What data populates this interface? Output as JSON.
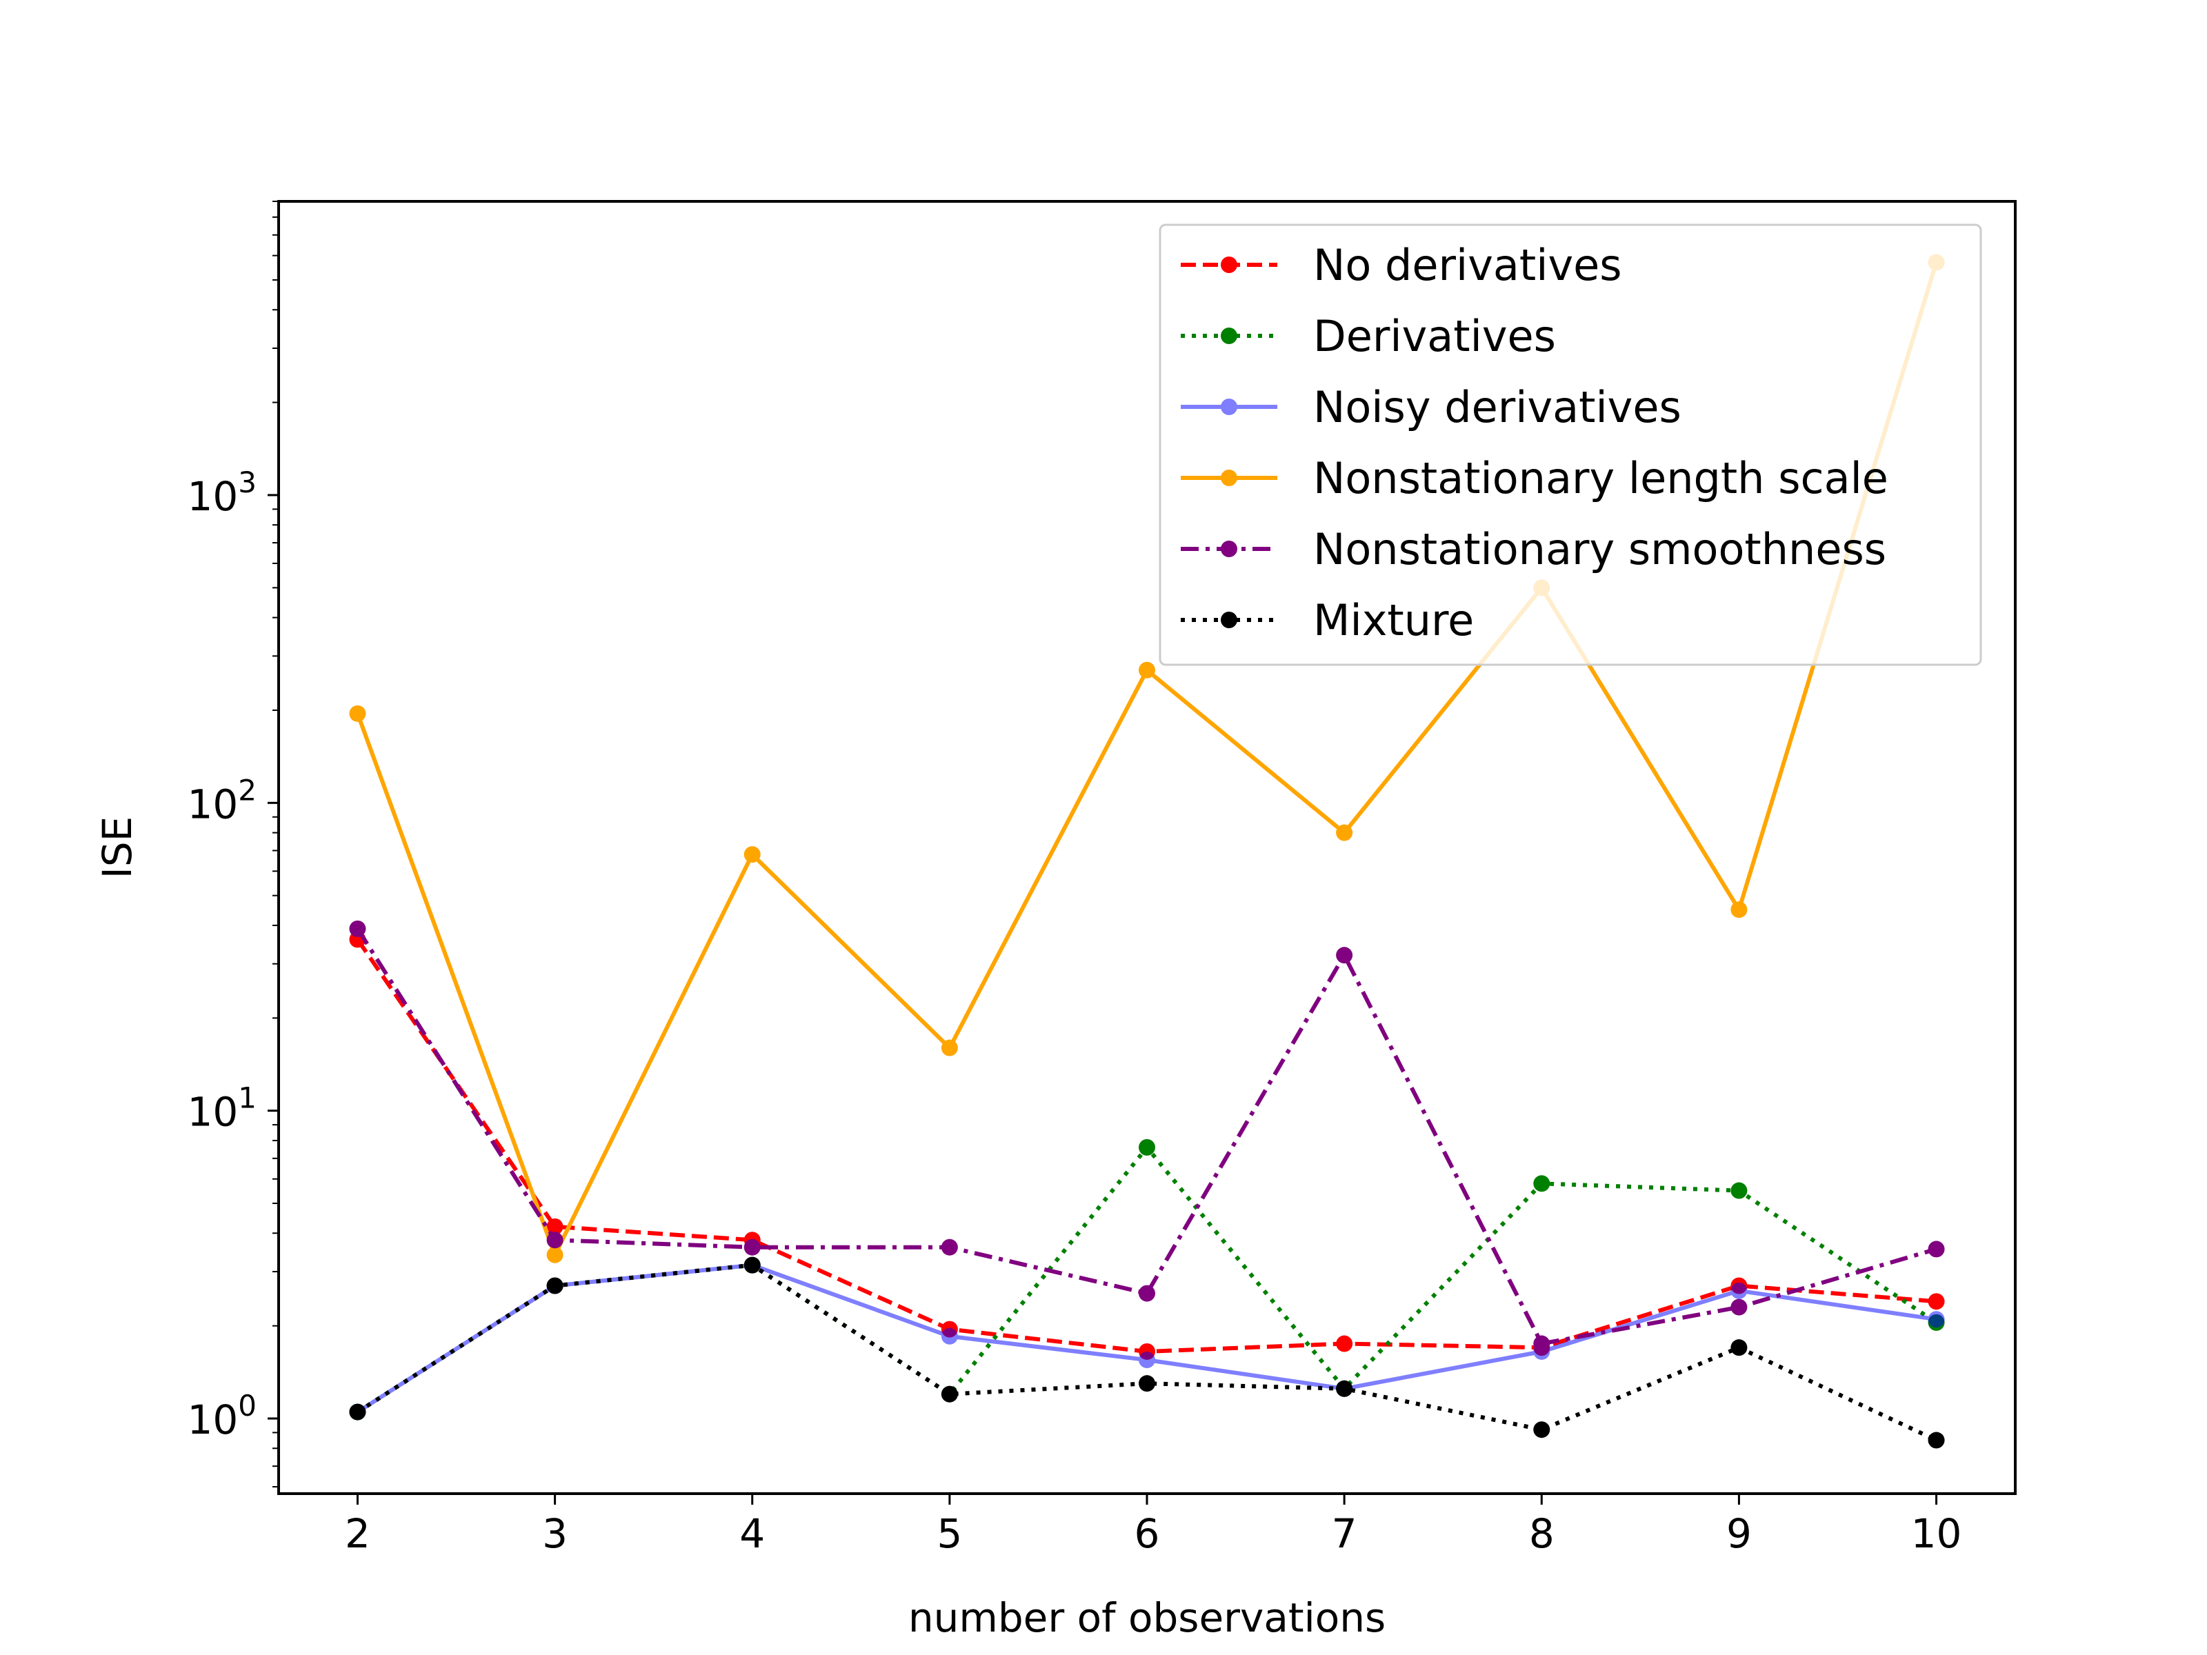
{
  "chart_data": {
    "type": "line",
    "title": "",
    "xlabel": "number of observations",
    "ylabel": "ISE",
    "yscale": "log",
    "x": [
      2,
      3,
      4,
      5,
      6,
      7,
      8,
      9,
      10
    ],
    "xlim": [
      1.6,
      10.4
    ],
    "ylim": [
      0.57,
      9000
    ],
    "x_ticks": [
      "2",
      "3",
      "4",
      "5",
      "6",
      "7",
      "8",
      "9",
      "10"
    ],
    "y_ticks": [
      {
        "value": 1,
        "base": "10",
        "exp": "0"
      },
      {
        "value": 10,
        "base": "10",
        "exp": "1"
      },
      {
        "value": 100,
        "base": "10",
        "exp": "2"
      },
      {
        "value": 1000,
        "base": "10",
        "exp": "3"
      }
    ],
    "grid": false,
    "legend_position": "top-right",
    "series": [
      {
        "name": "No derivatives",
        "color": "#ff0000",
        "dash": "dashed",
        "opacity": 1,
        "values": [
          36,
          4.2,
          3.8,
          1.95,
          1.65,
          1.75,
          1.7,
          2.7,
          2.4
        ]
      },
      {
        "name": "Derivatives",
        "color": "#008000",
        "dash": "dotted",
        "opacity": 1,
        "values": [
          1.05,
          2.7,
          3.15,
          1.2,
          7.6,
          1.25,
          5.8,
          5.5,
          2.05
        ]
      },
      {
        "name": "Noisy derivatives",
        "color": "#0000ff",
        "dash": "solid",
        "opacity": 0.5,
        "values": [
          1.05,
          2.7,
          3.15,
          1.85,
          1.55,
          1.25,
          1.65,
          2.6,
          2.1
        ]
      },
      {
        "name": "Nonstationary length scale",
        "color": "#ffa500",
        "dash": "solid",
        "opacity": 1,
        "values": [
          195,
          3.4,
          68,
          16,
          270,
          80,
          500,
          45,
          5700
        ]
      },
      {
        "name": "Nonstationary smoothness",
        "color": "#800080",
        "dash": "dashdot",
        "opacity": 1,
        "values": [
          39,
          3.8,
          3.6,
          3.6,
          2.55,
          32,
          1.75,
          2.3,
          3.55
        ]
      },
      {
        "name": "Mixture",
        "color": "#000000",
        "dash": "dotted",
        "opacity": 1,
        "values": [
          1.05,
          2.7,
          3.15,
          1.2,
          1.3,
          1.25,
          0.92,
          1.7,
          0.85
        ]
      }
    ]
  }
}
